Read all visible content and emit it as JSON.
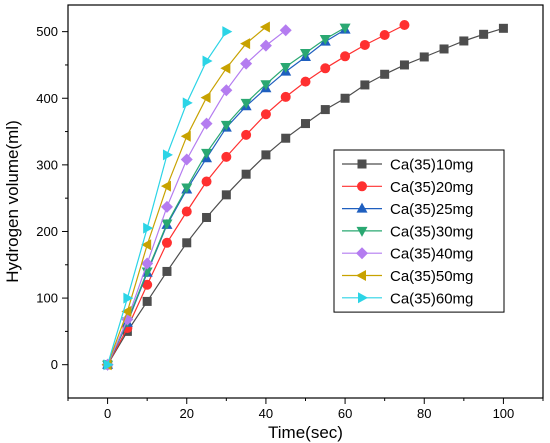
{
  "chart_data": {
    "type": "line",
    "title": "",
    "xlabel": "Time(sec)",
    "ylabel": "Hydrogen volume(ml)",
    "xlim": [
      -10,
      110
    ],
    "ylim": [
      -50,
      540
    ],
    "xticks": [
      0,
      20,
      40,
      60,
      80,
      100
    ],
    "yticks": [
      0,
      100,
      200,
      300,
      400,
      500
    ],
    "grid": false,
    "legend_position": "center-right",
    "series": [
      {
        "name": "Ca(35)10mg",
        "color": "#4d4d4d",
        "marker": "square",
        "x": [
          0,
          5,
          10,
          15,
          20,
          25,
          30,
          35,
          40,
          45,
          50,
          55,
          60,
          65,
          70,
          75,
          80,
          85,
          90,
          95,
          100
        ],
        "y": [
          0,
          50,
          95,
          140,
          183,
          221,
          255,
          286,
          315,
          340,
          362,
          383,
          400,
          420,
          436,
          450,
          462,
          474,
          486,
          496,
          505
        ]
      },
      {
        "name": "Ca(35)20mg",
        "color": "#ff3030",
        "marker": "circle",
        "x": [
          0,
          5,
          10,
          15,
          20,
          25,
          30,
          35,
          40,
          45,
          50,
          55,
          60,
          65,
          70,
          75
        ],
        "y": [
          0,
          55,
          120,
          183,
          230,
          275,
          312,
          345,
          376,
          402,
          425,
          445,
          463,
          480,
          495,
          510
        ]
      },
      {
        "name": "Ca(35)25mg",
        "color": "#1f5fbf",
        "marker": "triangle-up",
        "x": [
          0,
          5,
          10,
          15,
          20,
          25,
          30,
          35,
          40,
          45,
          50,
          55,
          60
        ],
        "y": [
          0,
          63,
          138,
          210,
          263,
          310,
          356,
          388,
          415,
          440,
          462,
          485,
          503
        ]
      },
      {
        "name": "Ca(35)30mg",
        "color": "#2aa872",
        "marker": "triangle-down",
        "x": [
          0,
          5,
          10,
          15,
          20,
          25,
          30,
          35,
          40,
          45,
          50,
          55,
          60
        ],
        "y": [
          0,
          65,
          140,
          212,
          266,
          318,
          360,
          393,
          421,
          447,
          468,
          489,
          506
        ]
      },
      {
        "name": "Ca(35)40mg",
        "color": "#b47cf0",
        "marker": "diamond",
        "x": [
          0,
          5,
          10,
          15,
          20,
          25,
          30,
          35,
          40,
          45
        ],
        "y": [
          0,
          68,
          152,
          237,
          308,
          362,
          412,
          452,
          479,
          502
        ]
      },
      {
        "name": "Ca(35)50mg",
        "color": "#c8a200",
        "marker": "triangle-left",
        "x": [
          0,
          5,
          10,
          15,
          20,
          25,
          30,
          35,
          40
        ],
        "y": [
          0,
          80,
          180,
          268,
          343,
          401,
          445,
          482,
          507
        ]
      },
      {
        "name": "Ca(35)60mg",
        "color": "#2bd4e6",
        "marker": "triangle-right",
        "x": [
          0,
          5,
          10,
          15,
          20,
          25,
          30
        ],
        "y": [
          0,
          100,
          205,
          315,
          393,
          456,
          500
        ]
      }
    ]
  }
}
